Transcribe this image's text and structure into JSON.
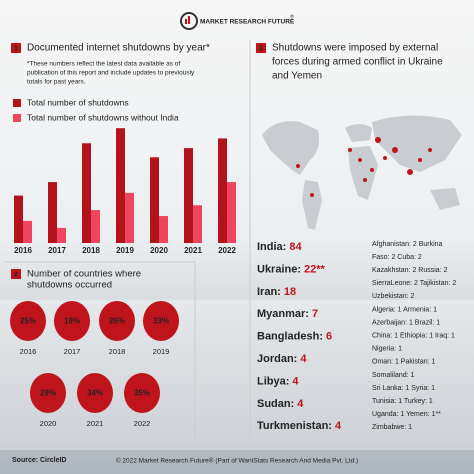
{
  "header": {
    "brand": "MARKET RESEARCH FUTURE",
    "brand_mark": "®"
  },
  "chart_data": {
    "type": "bar",
    "number": 1,
    "title": "Documented internet shutdowns by year*",
    "note_lines": [
      "*These numbers reflect the latest data available as of",
      "publication of this report and include updates to previously",
      "totals for past years."
    ],
    "categories": [
      "2016",
      "2017",
      "2018",
      "2019",
      "2020",
      "2021",
      "2022"
    ],
    "series": [
      {
        "name": "Total number of shutdowns",
        "color": "#b3131b",
        "values": [
          88,
          113,
          185,
          213,
          159,
          176,
          194
        ]
      },
      {
        "name": "Total number of shutdowns without India",
        "color": "#f0455e",
        "values": [
          41,
          28,
          61,
          93,
          50,
          70,
          113
        ]
      }
    ],
    "ylim": [
      0,
      230
    ]
  },
  "section2": {
    "number": 2,
    "title_lines": [
      "Number of countries where",
      "shutdowns occurred"
    ],
    "color": "#c0141c",
    "categories": [
      "2016",
      "2017",
      "2018",
      "2019",
      "2020",
      "2021",
      "2022"
    ],
    "values": [
      25,
      19,
      26,
      33,
      29,
      34,
      35
    ],
    "value_labels": [
      "25%",
      "19%",
      "26%",
      "33%",
      "29%",
      "34%",
      "35%"
    ]
  },
  "section3": {
    "number": 3,
    "title_lines": [
      "Shutdowns were imposed by external",
      "forces during armed conflict in Ukraine",
      "and Yemen"
    ],
    "top_countries": [
      {
        "country": "India:",
        "count": 84
      },
      {
        "country": "Ukraine:",
        "count": 22,
        "count_label": "22**"
      },
      {
        "country": "Iran:",
        "count": 18
      },
      {
        "country": "Myanmar:",
        "count": 7
      },
      {
        "country": "Bangladesh:",
        "count": 6
      },
      {
        "country": "Jordan:",
        "count": 4
      },
      {
        "country": "Libya:",
        "count": 4
      },
      {
        "country": "Sudan:",
        "count": 4
      },
      {
        "country": "Turkmenistan:",
        "count": 4
      }
    ],
    "other_lines": [
      "Afghanistan: 2 Burkina",
      "Faso: 2 Cuba: 2",
      "Kazakhstan: 2 Russia: 2",
      "SierraLeone: 2 Tajikistan: 2",
      "Uzbekistan: 2",
      "Algeria: 1 Armenia: 1",
      "Azerbaijan: 1 Brazil: 1",
      "China: 1 Ethiopia: 1 Iraq: 1",
      "Nigeria: 1",
      "Oman: 1 Pakistan: 1",
      "Somaliland: 1",
      "Sri Lanka: 1 Syria: 1",
      "Tunisia: 1 Turkey: 1",
      "Uganda: 1 Yemen: 1**",
      "Zimbabwe: 1"
    ]
  },
  "source": "Source: CircleID",
  "footer": "© 2022 Market Research Future® (Part of WantStats Research And Media Pvt. Ltd.)"
}
